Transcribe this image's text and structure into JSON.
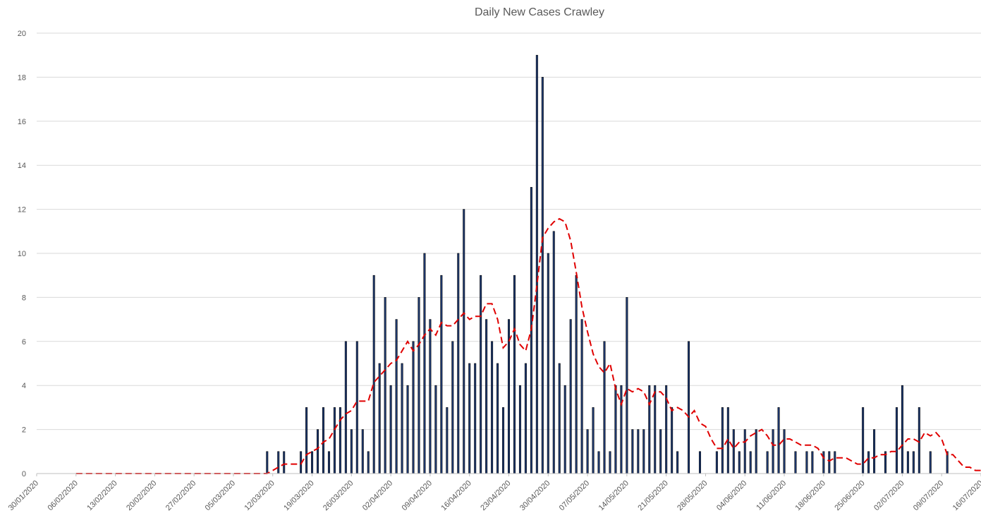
{
  "chart_data": {
    "type": "bar",
    "title": "Daily New Cases Crawley",
    "xlabel": "",
    "ylabel": "",
    "ylim": [
      0,
      20
    ],
    "yticks": [
      "0",
      "2",
      "4",
      "6",
      "8",
      "10",
      "12",
      "14",
      "16",
      "18",
      "20"
    ],
    "grid": true,
    "x_start": "30/01/2020",
    "x_end": "16/07/2020",
    "xtick_labels": [
      "30/01/2020",
      "06/02/2020",
      "13/02/2020",
      "20/02/2020",
      "27/02/2020",
      "05/03/2020",
      "12/03/2020",
      "19/03/2020",
      "26/03/2020",
      "02/04/2020",
      "09/04/2020",
      "16/04/2020",
      "23/04/2020",
      "30/04/2020",
      "07/05/2020",
      "14/05/2020",
      "21/05/2020",
      "28/05/2020",
      "04/06/2020",
      "11/06/2020",
      "18/06/2020",
      "25/06/2020",
      "02/07/2020",
      "09/07/2020",
      "16/07/2020"
    ],
    "series": [
      {
        "type": "bar",
        "color": "#1f3b73",
        "points": [
          [
            "11/03/2020",
            1
          ],
          [
            "13/03/2020",
            1
          ],
          [
            "14/03/2020",
            1
          ],
          [
            "17/03/2020",
            1
          ],
          [
            "18/03/2020",
            3
          ],
          [
            "19/03/2020",
            1
          ],
          [
            "20/03/2020",
            2
          ],
          [
            "21/03/2020",
            3
          ],
          [
            "22/03/2020",
            1
          ],
          [
            "23/03/2020",
            3
          ],
          [
            "24/03/2020",
            3
          ],
          [
            "25/03/2020",
            6
          ],
          [
            "26/03/2020",
            2
          ],
          [
            "27/03/2020",
            6
          ],
          [
            "28/03/2020",
            2
          ],
          [
            "29/03/2020",
            1
          ],
          [
            "30/03/2020",
            9
          ],
          [
            "31/03/2020",
            5
          ],
          [
            "01/04/2020",
            8
          ],
          [
            "02/04/2020",
            4
          ],
          [
            "03/04/2020",
            7
          ],
          [
            "04/04/2020",
            5
          ],
          [
            "05/04/2020",
            4
          ],
          [
            "06/04/2020",
            6
          ],
          [
            "07/04/2020",
            8
          ],
          [
            "08/04/2020",
            10
          ],
          [
            "09/04/2020",
            7
          ],
          [
            "10/04/2020",
            4
          ],
          [
            "11/04/2020",
            9
          ],
          [
            "12/04/2020",
            3
          ],
          [
            "13/04/2020",
            6
          ],
          [
            "14/04/2020",
            10
          ],
          [
            "15/04/2020",
            12
          ],
          [
            "16/04/2020",
            5
          ],
          [
            "17/04/2020",
            5
          ],
          [
            "18/04/2020",
            9
          ],
          [
            "19/04/2020",
            7
          ],
          [
            "20/04/2020",
            6
          ],
          [
            "21/04/2020",
            5
          ],
          [
            "22/04/2020",
            3
          ],
          [
            "23/04/2020",
            7
          ],
          [
            "24/04/2020",
            9
          ],
          [
            "25/04/2020",
            4
          ],
          [
            "26/04/2020",
            5
          ],
          [
            "27/04/2020",
            13
          ],
          [
            "28/04/2020",
            19
          ],
          [
            "29/04/2020",
            18
          ],
          [
            "30/04/2020",
            10
          ],
          [
            "01/05/2020",
            11
          ],
          [
            "02/05/2020",
            5
          ],
          [
            "03/05/2020",
            4
          ],
          [
            "04/05/2020",
            7
          ],
          [
            "05/05/2020",
            9
          ],
          [
            "06/05/2020",
            7
          ],
          [
            "07/05/2020",
            2
          ],
          [
            "08/05/2020",
            3
          ],
          [
            "09/05/2020",
            1
          ],
          [
            "10/05/2020",
            6
          ],
          [
            "11/05/2020",
            1
          ],
          [
            "12/05/2020",
            4
          ],
          [
            "13/05/2020",
            4
          ],
          [
            "14/05/2020",
            8
          ],
          [
            "15/05/2020",
            2
          ],
          [
            "16/05/2020",
            2
          ],
          [
            "17/05/2020",
            2
          ],
          [
            "18/05/2020",
            4
          ],
          [
            "19/05/2020",
            4
          ],
          [
            "20/05/2020",
            2
          ],
          [
            "21/05/2020",
            4
          ],
          [
            "22/05/2020",
            3
          ],
          [
            "23/05/2020",
            1
          ],
          [
            "25/05/2020",
            6
          ],
          [
            "27/05/2020",
            1
          ],
          [
            "30/05/2020",
            1
          ],
          [
            "31/05/2020",
            3
          ],
          [
            "01/06/2020",
            3
          ],
          [
            "02/06/2020",
            2
          ],
          [
            "03/06/2020",
            1
          ],
          [
            "04/06/2020",
            2
          ],
          [
            "05/06/2020",
            1
          ],
          [
            "06/06/2020",
            2
          ],
          [
            "08/06/2020",
            1
          ],
          [
            "09/06/2020",
            2
          ],
          [
            "10/06/2020",
            3
          ],
          [
            "11/06/2020",
            2
          ],
          [
            "13/06/2020",
            1
          ],
          [
            "15/06/2020",
            1
          ],
          [
            "16/06/2020",
            1
          ],
          [
            "18/06/2020",
            1
          ],
          [
            "19/06/2020",
            1
          ],
          [
            "20/06/2020",
            1
          ],
          [
            "25/06/2020",
            3
          ],
          [
            "26/06/2020",
            1
          ],
          [
            "27/06/2020",
            2
          ],
          [
            "29/06/2020",
            1
          ],
          [
            "01/07/2020",
            3
          ],
          [
            "02/07/2020",
            4
          ],
          [
            "03/07/2020",
            1
          ],
          [
            "04/07/2020",
            1
          ],
          [
            "05/07/2020",
            3
          ],
          [
            "07/07/2020",
            1
          ],
          [
            "10/07/2020",
            1
          ]
        ]
      },
      {
        "type": "line",
        "style": "dashed",
        "color": "#e00000",
        "points": [
          [
            "06/02/2020",
            0
          ],
          [
            "11/03/2020",
            0
          ],
          [
            "12/03/2020",
            0.14
          ],
          [
            "13/03/2020",
            0.29
          ],
          [
            "14/03/2020",
            0.43
          ],
          [
            "16/03/2020",
            0.43
          ],
          [
            "17/03/2020",
            0.43
          ],
          [
            "18/03/2020",
            0.86
          ],
          [
            "19/03/2020",
            1.0
          ],
          [
            "20/03/2020",
            1.14
          ],
          [
            "21/03/2020",
            1.43
          ],
          [
            "22/03/2020",
            1.57
          ],
          [
            "23/03/2020",
            2.0
          ],
          [
            "24/03/2020",
            2.43
          ],
          [
            "25/03/2020",
            2.71
          ],
          [
            "26/03/2020",
            2.86
          ],
          [
            "27/03/2020",
            3.29
          ],
          [
            "28/03/2020",
            3.29
          ],
          [
            "29/03/2020",
            3.29
          ],
          [
            "30/03/2020",
            4.14
          ],
          [
            "31/03/2020",
            4.43
          ],
          [
            "01/04/2020",
            4.71
          ],
          [
            "02/04/2020",
            5.0
          ],
          [
            "03/04/2020",
            5.14
          ],
          [
            "04/04/2020",
            5.57
          ],
          [
            "05/04/2020",
            6.0
          ],
          [
            "06/04/2020",
            5.57
          ],
          [
            "07/04/2020",
            5.86
          ],
          [
            "08/04/2020",
            6.29
          ],
          [
            "09/04/2020",
            6.57
          ],
          [
            "10/04/2020",
            6.29
          ],
          [
            "11/04/2020",
            6.86
          ],
          [
            "12/04/2020",
            6.71
          ],
          [
            "13/04/2020",
            6.71
          ],
          [
            "14/04/2020",
            7.0
          ],
          [
            "15/04/2020",
            7.29
          ],
          [
            "16/04/2020",
            7.0
          ],
          [
            "17/04/2020",
            7.14
          ],
          [
            "18/04/2020",
            7.14
          ],
          [
            "19/04/2020",
            7.71
          ],
          [
            "20/04/2020",
            7.71
          ],
          [
            "21/04/2020",
            7.0
          ],
          [
            "22/04/2020",
            5.71
          ],
          [
            "23/04/2020",
            6.0
          ],
          [
            "24/04/2020",
            6.57
          ],
          [
            "25/04/2020",
            5.86
          ],
          [
            "26/04/2020",
            5.57
          ],
          [
            "27/04/2020",
            6.57
          ],
          [
            "28/04/2020",
            8.57
          ],
          [
            "29/04/2020",
            10.71
          ],
          [
            "30/04/2020",
            11.14
          ],
          [
            "01/05/2020",
            11.43
          ],
          [
            "02/05/2020",
            11.57
          ],
          [
            "03/05/2020",
            11.43
          ],
          [
            "04/05/2020",
            10.57
          ],
          [
            "05/05/2020",
            9.14
          ],
          [
            "06/05/2020",
            7.57
          ],
          [
            "07/05/2020",
            6.43
          ],
          [
            "08/05/2020",
            5.43
          ],
          [
            "09/05/2020",
            4.86
          ],
          [
            "10/05/2020",
            4.57
          ],
          [
            "11/05/2020",
            5.0
          ],
          [
            "12/05/2020",
            3.86
          ],
          [
            "13/05/2020",
            3.14
          ],
          [
            "14/05/2020",
            3.86
          ],
          [
            "15/05/2020",
            3.71
          ],
          [
            "16/05/2020",
            3.86
          ],
          [
            "17/05/2020",
            3.71
          ],
          [
            "18/05/2020",
            3.14
          ],
          [
            "19/05/2020",
            3.71
          ],
          [
            "20/05/2020",
            3.71
          ],
          [
            "21/05/2020",
            3.43
          ],
          [
            "22/05/2020",
            2.86
          ],
          [
            "23/05/2020",
            3.0
          ],
          [
            "24/05/2020",
            2.86
          ],
          [
            "25/05/2020",
            2.57
          ],
          [
            "26/05/2020",
            2.86
          ],
          [
            "27/05/2020",
            2.29
          ],
          [
            "28/05/2020",
            2.14
          ],
          [
            "29/05/2020",
            1.57
          ],
          [
            "30/05/2020",
            1.14
          ],
          [
            "31/05/2020",
            1.14
          ],
          [
            "01/06/2020",
            1.57
          ],
          [
            "02/06/2020",
            1.14
          ],
          [
            "03/06/2020",
            1.43
          ],
          [
            "04/06/2020",
            1.43
          ],
          [
            "05/06/2020",
            1.71
          ],
          [
            "06/06/2020",
            1.86
          ],
          [
            "07/06/2020",
            2.0
          ],
          [
            "08/06/2020",
            1.71
          ],
          [
            "09/06/2020",
            1.29
          ],
          [
            "10/06/2020",
            1.29
          ],
          [
            "11/06/2020",
            1.57
          ],
          [
            "12/06/2020",
            1.57
          ],
          [
            "13/06/2020",
            1.43
          ],
          [
            "14/06/2020",
            1.29
          ],
          [
            "15/06/2020",
            1.29
          ],
          [
            "16/06/2020",
            1.29
          ],
          [
            "17/06/2020",
            1.14
          ],
          [
            "18/06/2020",
            0.71
          ],
          [
            "19/06/2020",
            0.57
          ],
          [
            "20/06/2020",
            0.71
          ],
          [
            "21/06/2020",
            0.71
          ],
          [
            "22/06/2020",
            0.71
          ],
          [
            "23/06/2020",
            0.57
          ],
          [
            "24/06/2020",
            0.43
          ],
          [
            "25/06/2020",
            0.43
          ],
          [
            "26/06/2020",
            0.71
          ],
          [
            "27/06/2020",
            0.71
          ],
          [
            "28/06/2020",
            0.86
          ],
          [
            "29/06/2020",
            0.86
          ],
          [
            "30/06/2020",
            1.0
          ],
          [
            "01/07/2020",
            1.0
          ],
          [
            "02/07/2020",
            1.29
          ],
          [
            "03/07/2020",
            1.57
          ],
          [
            "04/07/2020",
            1.57
          ],
          [
            "05/07/2020",
            1.43
          ],
          [
            "06/07/2020",
            1.86
          ],
          [
            "07/07/2020",
            1.71
          ],
          [
            "08/07/2020",
            1.86
          ],
          [
            "09/07/2020",
            1.57
          ],
          [
            "10/07/2020",
            0.86
          ],
          [
            "11/07/2020",
            0.86
          ],
          [
            "12/07/2020",
            0.57
          ],
          [
            "13/07/2020",
            0.29
          ],
          [
            "14/07/2020",
            0.29
          ],
          [
            "15/07/2020",
            0.14
          ],
          [
            "16/07/2020",
            0.14
          ],
          [
            "17/07/2020",
            0.29
          ]
        ]
      }
    ]
  }
}
